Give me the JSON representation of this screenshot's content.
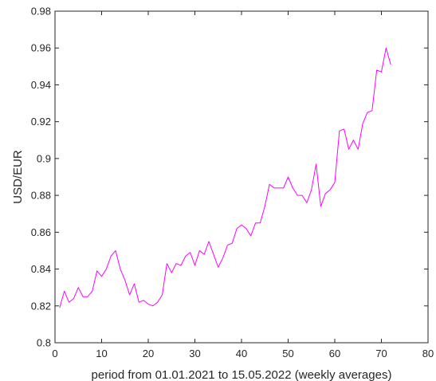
{
  "chart_data": {
    "type": "line",
    "title": "",
    "xlabel": "period from 01.01.2021 to 15.05.2022 (weekly averages)",
    "ylabel": "USD/EUR",
    "xlim": [
      0,
      80
    ],
    "ylim": [
      0.8,
      0.98
    ],
    "xticks": [
      0,
      10,
      20,
      30,
      40,
      50,
      60,
      70,
      80
    ],
    "yticks": [
      0.8,
      0.82,
      0.84,
      0.86,
      0.88,
      0.9,
      0.92,
      0.94,
      0.96,
      0.98
    ],
    "xtick_labels": [
      "0",
      "10",
      "20",
      "30",
      "40",
      "50",
      "60",
      "70",
      "80"
    ],
    "ytick_labels": [
      "0.8",
      "0.82",
      "0.84",
      "0.86",
      "0.88",
      "0.9",
      "0.92",
      "0.94",
      "0.96",
      "0.98"
    ],
    "grid": false,
    "box": true,
    "series": [
      {
        "color": "#ff00ff",
        "x": [
          1,
          2,
          3,
          4,
          5,
          6,
          7,
          8,
          9,
          10,
          11,
          12,
          13,
          14,
          15,
          16,
          17,
          18,
          19,
          20,
          21,
          22,
          23,
          24,
          25,
          26,
          27,
          28,
          29,
          30,
          31,
          32,
          33,
          34,
          35,
          36,
          37,
          38,
          39,
          40,
          41,
          42,
          43,
          44,
          45,
          46,
          47,
          48,
          49,
          50,
          51,
          52,
          53,
          54,
          55,
          56,
          57,
          58,
          59,
          60,
          61,
          62,
          63,
          64,
          65,
          66,
          67,
          68,
          69,
          70,
          71,
          72
        ],
        "values": [
          0.819,
          0.828,
          0.822,
          0.824,
          0.83,
          0.825,
          0.825,
          0.828,
          0.839,
          0.836,
          0.84,
          0.847,
          0.85,
          0.84,
          0.834,
          0.826,
          0.832,
          0.822,
          0.823,
          0.821,
          0.82,
          0.822,
          0.826,
          0.843,
          0.838,
          0.843,
          0.842,
          0.847,
          0.849,
          0.842,
          0.85,
          0.848,
          0.855,
          0.848,
          0.841,
          0.846,
          0.853,
          0.854,
          0.862,
          0.864,
          0.862,
          0.858,
          0.865,
          0.865,
          0.874,
          0.886,
          0.884,
          0.884,
          0.884,
          0.89,
          0.884,
          0.88,
          0.88,
          0.876,
          0.883,
          0.897,
          0.874,
          0.881,
          0.883,
          0.887,
          0.915,
          0.916,
          0.905,
          0.91,
          0.905,
          0.919,
          0.925,
          0.926,
          0.948,
          0.947,
          0.96,
          0.951
        ]
      }
    ]
  }
}
